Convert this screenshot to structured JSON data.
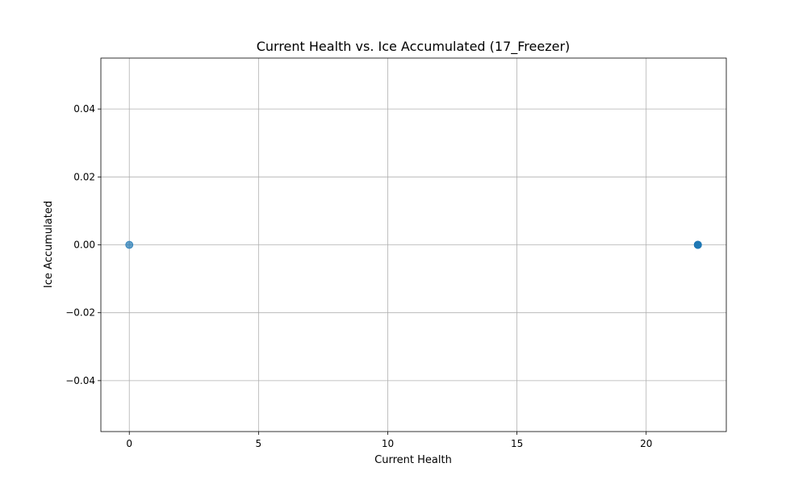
{
  "chart_data": {
    "type": "scatter",
    "title": "Current Health vs. Ice Accumulated (17_Freezer)",
    "xlabel": "Current Health",
    "ylabel": "Ice Accumulated",
    "xlim": [
      -1.1,
      23.1
    ],
    "ylim": [
      -0.055,
      0.055
    ],
    "xticks": [
      0,
      5,
      10,
      15,
      20
    ],
    "yticks": [
      -0.04,
      -0.02,
      0.0,
      0.02,
      0.04
    ],
    "xtick_labels": [
      "0",
      "5",
      "10",
      "15",
      "20"
    ],
    "ytick_labels": [
      "−0.04",
      "−0.02",
      "0.00",
      "0.02",
      "0.04"
    ],
    "grid": true,
    "marker_color": "#1f77b4",
    "marker_alpha": 0.7,
    "points": [
      {
        "x": 0,
        "y": 0.0
      },
      {
        "x": 22,
        "y": 0.0
      },
      {
        "x": 22,
        "y": 0.0
      },
      {
        "x": 22,
        "y": 0.0
      },
      {
        "x": 22,
        "y": 0.0
      },
      {
        "x": 22,
        "y": 0.0
      }
    ]
  }
}
